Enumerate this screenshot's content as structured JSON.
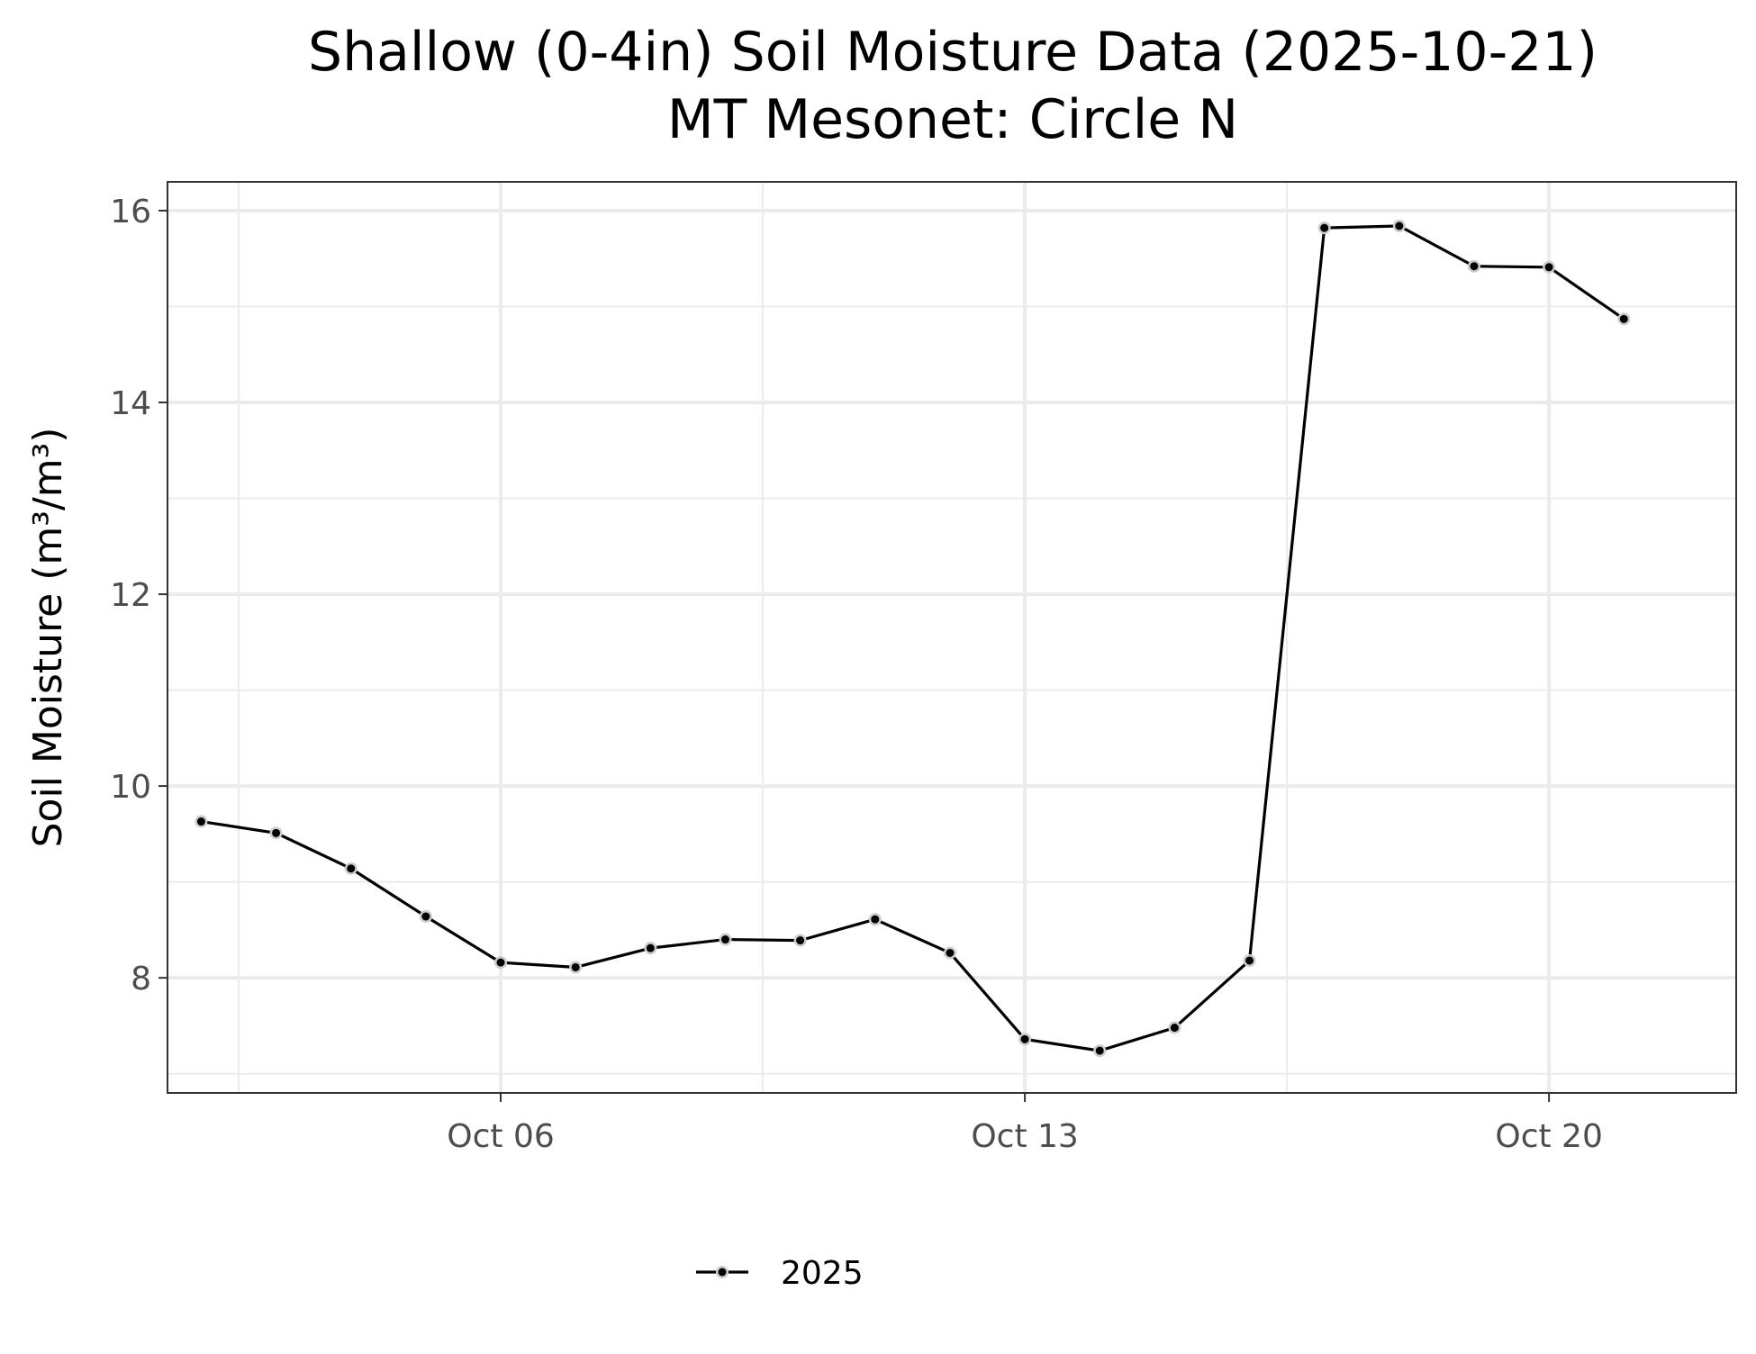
{
  "chart_data": {
    "type": "line",
    "title": "Shallow (0-4in) Soil Moisture Data (2025-10-21)",
    "subtitle": "MT Mesonet: Circle N",
    "ylabel": "Soil Moisture (m³/m³)",
    "xlabel": "",
    "xlim": [
      "2025-10-01",
      "2025-10-22"
    ],
    "ylim": [
      6.8,
      16.3
    ],
    "x_ticks": [
      {
        "date": "2025-10-06",
        "label": "Oct 06"
      },
      {
        "date": "2025-10-13",
        "label": "Oct 13"
      },
      {
        "date": "2025-10-20",
        "label": "Oct 20"
      }
    ],
    "y_ticks": [
      8,
      10,
      12,
      14,
      16
    ],
    "grid": true,
    "legend_position": "bottom",
    "series": [
      {
        "name": "2025",
        "color": "#000000",
        "x": [
          "2025-10-02",
          "2025-10-03",
          "2025-10-04",
          "2025-10-05",
          "2025-10-06",
          "2025-10-07",
          "2025-10-08",
          "2025-10-09",
          "2025-10-10",
          "2025-10-11",
          "2025-10-12",
          "2025-10-13",
          "2025-10-14",
          "2025-10-15",
          "2025-10-16",
          "2025-10-17",
          "2025-10-18",
          "2025-10-19",
          "2025-10-20",
          "2025-10-21"
        ],
        "y": [
          9.63,
          9.51,
          9.14,
          8.64,
          8.16,
          8.11,
          8.31,
          8.4,
          8.39,
          8.61,
          8.26,
          7.36,
          7.24,
          7.48,
          8.18,
          15.82,
          15.84,
          15.42,
          15.41,
          14.87
        ]
      }
    ]
  }
}
